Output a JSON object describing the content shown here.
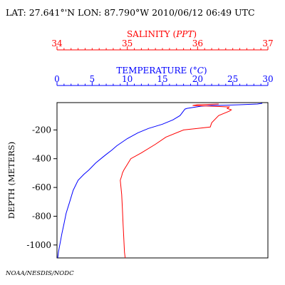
{
  "header": {
    "text": "LAT: 27.641°'N LON: 87.790°W 2010/06/12 06:49 UTC"
  },
  "footer": {
    "text": "NOAA/NESDIS/NODC"
  },
  "chart_data": {
    "type": "line",
    "ylabel": "DEPTH (METERS)",
    "ylim": [
      -1090,
      -10
    ],
    "y_ticks": [
      -200,
      -400,
      -600,
      -800,
      -1000
    ],
    "grid": false,
    "axes": [
      {
        "id": "salinity",
        "label": "SALINITY (PPT)",
        "label_main": "SALINITY (",
        "label_unit": "PPT",
        "label_end": ")",
        "range": [
          34,
          37
        ],
        "ticks": [
          34,
          35,
          36,
          37
        ],
        "minor_per_major": 10,
        "color": "#ff0000"
      },
      {
        "id": "temperature",
        "label": "TEMPERATURE (°C)",
        "label_main": "TEMPERATURE (",
        "label_unit": "°C",
        "label_end": ")",
        "range": [
          0,
          30
        ],
        "ticks": [
          0,
          5,
          10,
          15,
          20,
          25,
          30
        ],
        "minor_per_major": 5,
        "color": "#0000ff"
      }
    ],
    "series": [
      {
        "axis": "temperature",
        "color": "#0000ff",
        "points": [
          [
            29.2,
            -15
          ],
          [
            28.5,
            -20
          ],
          [
            26,
            -25
          ],
          [
            24,
            -28
          ],
          [
            22,
            -30
          ],
          [
            20.5,
            -35
          ],
          [
            18.5,
            -50
          ],
          [
            18.2,
            -55
          ],
          [
            17.5,
            -100
          ],
          [
            16.5,
            -130
          ],
          [
            15,
            -160
          ],
          [
            13,
            -190
          ],
          [
            11.5,
            -220
          ],
          [
            10,
            -260
          ],
          [
            8.5,
            -310
          ],
          [
            7.8,
            -340
          ],
          [
            7,
            -370
          ],
          [
            6.5,
            -390
          ],
          [
            5.5,
            -430
          ],
          [
            4.5,
            -480
          ],
          [
            3.8,
            -510
          ],
          [
            3,
            -550
          ],
          [
            2.3,
            -620
          ],
          [
            1.8,
            -700
          ],
          [
            1.3,
            -780
          ],
          [
            1.0,
            -850
          ],
          [
            0.7,
            -920
          ],
          [
            0.4,
            -1000
          ],
          [
            0.2,
            -1050
          ],
          [
            0.1,
            -1090
          ]
        ]
      },
      {
        "axis": "salinity",
        "points": [
          [
            36.3,
            -20
          ],
          [
            36.0,
            -25
          ],
          [
            35.93,
            -30
          ],
          [
            36.2,
            -35
          ],
          [
            36.45,
            -40
          ],
          [
            36.42,
            -50
          ],
          [
            36.48,
            -60
          ],
          [
            36.45,
            -70
          ],
          [
            36.3,
            -100
          ],
          [
            36.2,
            -150
          ],
          [
            36.18,
            -180
          ],
          [
            36.0,
            -190
          ],
          [
            35.8,
            -200
          ],
          [
            35.55,
            -250
          ],
          [
            35.4,
            -300
          ],
          [
            35.2,
            -360
          ],
          [
            35.05,
            -400
          ],
          [
            35.0,
            -440
          ],
          [
            34.95,
            -480
          ],
          [
            34.93,
            -500
          ],
          [
            34.92,
            -520
          ],
          [
            34.9,
            -550
          ],
          [
            34.91,
            -600
          ],
          [
            34.92,
            -650
          ],
          [
            34.93,
            -750
          ],
          [
            34.94,
            -850
          ],
          [
            34.95,
            -950
          ],
          [
            34.96,
            -1050
          ],
          [
            34.97,
            -1090
          ]
        ],
        "color": "#ff0000"
      }
    ]
  }
}
